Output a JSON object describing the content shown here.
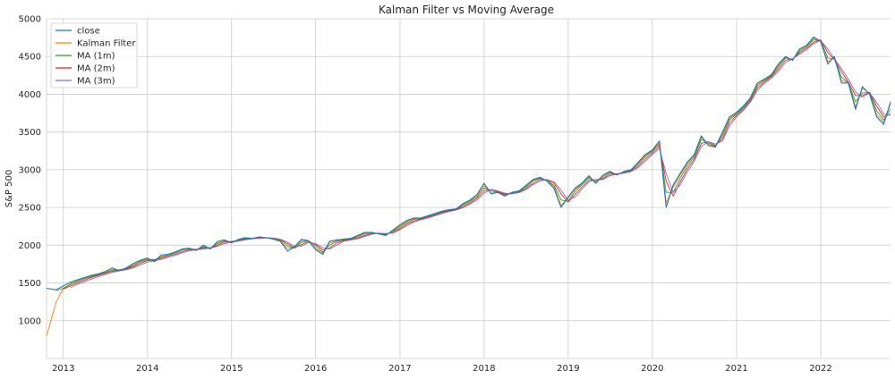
{
  "chart_data": {
    "type": "line",
    "title": "Kalman Filter vs Moving Average",
    "xlabel": "",
    "ylabel": "S&P 500",
    "xlim": [
      "2012-10-20",
      "2022-10-31"
    ],
    "ylim": [
      500,
      5000
    ],
    "x_tick_labels": [
      "2013",
      "2014",
      "2015",
      "2016",
      "2017",
      "2018",
      "2019",
      "2020",
      "2021",
      "2022"
    ],
    "y_tick_labels": [
      "1000",
      "1500",
      "2000",
      "2500",
      "3000",
      "3500",
      "4000",
      "4500",
      "5000"
    ],
    "y_ticks": [
      1000,
      1500,
      2000,
      2500,
      3000,
      3500,
      4000,
      4500,
      5000
    ],
    "grid": true,
    "legend_position": "upper-left",
    "x": [
      "2012-10-20",
      "2012-12-01",
      "2013-01-01",
      "2013-02-01",
      "2013-03-01",
      "2013-04-01",
      "2013-05-01",
      "2013-06-01",
      "2013-07-01",
      "2013-08-01",
      "2013-09-01",
      "2013-10-01",
      "2013-11-01",
      "2013-12-01",
      "2014-01-01",
      "2014-02-01",
      "2014-03-01",
      "2014-04-01",
      "2014-05-01",
      "2014-06-01",
      "2014-07-01",
      "2014-08-01",
      "2014-09-01",
      "2014-10-01",
      "2014-11-01",
      "2014-12-01",
      "2015-01-01",
      "2015-02-01",
      "2015-03-01",
      "2015-04-01",
      "2015-05-01",
      "2015-06-01",
      "2015-07-01",
      "2015-08-01",
      "2015-09-01",
      "2015-10-01",
      "2015-11-01",
      "2015-12-01",
      "2016-01-01",
      "2016-02-01",
      "2016-03-01",
      "2016-04-01",
      "2016-05-01",
      "2016-06-01",
      "2016-07-01",
      "2016-08-01",
      "2016-09-01",
      "2016-10-01",
      "2016-11-01",
      "2016-12-01",
      "2017-01-01",
      "2017-02-01",
      "2017-03-01",
      "2017-04-01",
      "2017-05-01",
      "2017-06-01",
      "2017-07-01",
      "2017-08-01",
      "2017-09-01",
      "2017-10-01",
      "2017-11-01",
      "2017-12-01",
      "2018-01-01",
      "2018-02-01",
      "2018-03-01",
      "2018-04-01",
      "2018-05-01",
      "2018-06-01",
      "2018-07-01",
      "2018-08-01",
      "2018-09-01",
      "2018-10-01",
      "2018-11-01",
      "2018-12-01",
      "2019-01-01",
      "2019-02-01",
      "2019-03-01",
      "2019-04-01",
      "2019-05-01",
      "2019-06-01",
      "2019-07-01",
      "2019-08-01",
      "2019-09-01",
      "2019-10-01",
      "2019-11-01",
      "2019-12-01",
      "2020-01-01",
      "2020-02-01",
      "2020-03-01",
      "2020-04-01",
      "2020-05-01",
      "2020-06-01",
      "2020-07-01",
      "2020-08-01",
      "2020-09-01",
      "2020-10-01",
      "2020-11-01",
      "2020-12-01",
      "2021-01-01",
      "2021-02-01",
      "2021-03-01",
      "2021-04-01",
      "2021-05-01",
      "2021-06-01",
      "2021-07-01",
      "2021-08-01",
      "2021-09-01",
      "2021-10-01",
      "2021-11-01",
      "2021-12-01",
      "2022-01-01",
      "2022-02-01",
      "2022-03-01",
      "2022-04-01",
      "2022-05-01",
      "2022-06-01",
      "2022-07-01",
      "2022-08-01",
      "2022-09-01",
      "2022-10-01",
      "2022-10-31"
    ],
    "series": [
      {
        "name": "close",
        "color": "#1f77b4",
        "values": [
          1430,
          1410,
          1460,
          1510,
          1540,
          1570,
          1600,
          1620,
          1650,
          1700,
          1660,
          1700,
          1760,
          1800,
          1830,
          1780,
          1870,
          1880,
          1910,
          1950,
          1960,
          1930,
          2000,
          1950,
          2050,
          2070,
          2030,
          2080,
          2100,
          2090,
          2110,
          2100,
          2080,
          2050,
          1920,
          1980,
          2080,
          2060,
          1940,
          1880,
          2050,
          2070,
          2080,
          2090,
          2130,
          2170,
          2170,
          2150,
          2130,
          2200,
          2270,
          2330,
          2360,
          2360,
          2390,
          2420,
          2450,
          2470,
          2480,
          2550,
          2600,
          2670,
          2820,
          2680,
          2700,
          2650,
          2700,
          2720,
          2790,
          2870,
          2900,
          2850,
          2750,
          2500,
          2640,
          2760,
          2820,
          2920,
          2820,
          2930,
          2980,
          2930,
          2980,
          3000,
          3100,
          3200,
          3260,
          3380,
          2500,
          2800,
          2950,
          3100,
          3200,
          3450,
          3320,
          3300,
          3500,
          3700,
          3760,
          3850,
          3950,
          4150,
          4200,
          4260,
          4400,
          4500,
          4450,
          4600,
          4650,
          4760,
          4700,
          4400,
          4500,
          4150,
          4150,
          3800,
          4100,
          4000,
          3700,
          3600,
          3900
        ]
      },
      {
        "name": "Kalman Filter",
        "color": "#ff7f0e",
        "values": [
          800,
          1250,
          1430,
          1490,
          1525,
          1560,
          1590,
          1615,
          1640,
          1680,
          1670,
          1700,
          1740,
          1790,
          1815,
          1800,
          1850,
          1875,
          1900,
          1940,
          1955,
          1940,
          1985,
          1960,
          2030,
          2060,
          2040,
          2070,
          2095,
          2090,
          2105,
          2100,
          2085,
          2055,
          1955,
          1975,
          2060,
          2060,
          1960,
          1900,
          2030,
          2060,
          2075,
          2085,
          2120,
          2160,
          2165,
          2150,
          2135,
          2190,
          2255,
          2315,
          2350,
          2360,
          2385,
          2415,
          2445,
          2465,
          2480,
          2540,
          2590,
          2660,
          2790,
          2690,
          2700,
          2660,
          2695,
          2715,
          2780,
          2860,
          2890,
          2855,
          2770,
          2530,
          2620,
          2745,
          2810,
          2905,
          2830,
          2920,
          2970,
          2935,
          2975,
          3000,
          3090,
          3185,
          3250,
          3360,
          2560,
          2770,
          2930,
          3080,
          3190,
          3430,
          3330,
          3305,
          3480,
          3680,
          3750,
          3840,
          3940,
          4130,
          4190,
          4250,
          4380,
          4490,
          4455,
          4590,
          4640,
          4740,
          4700,
          4430,
          4490,
          4180,
          4160,
          3830,
          4080,
          4010,
          3730,
          3630,
          3870
        ]
      },
      {
        "name": "MA (1m)",
        "color": "#2ca02c",
        "values": [
          null,
          1400,
          1430,
          1480,
          1520,
          1555,
          1585,
          1610,
          1635,
          1670,
          1675,
          1690,
          1730,
          1780,
          1810,
          1810,
          1840,
          1870,
          1895,
          1935,
          1950,
          1945,
          1975,
          1965,
          2020,
          2055,
          2045,
          2065,
          2090,
          2090,
          2100,
          2100,
          2090,
          2065,
          1990,
          1960,
          2040,
          2060,
          1990,
          1910,
          2000,
          2050,
          2070,
          2080,
          2110,
          2150,
          2165,
          2155,
          2140,
          2180,
          2240,
          2300,
          2340,
          2355,
          2380,
          2410,
          2440,
          2460,
          2475,
          2530,
          2580,
          2640,
          2760,
          2720,
          2700,
          2670,
          2690,
          2710,
          2770,
          2850,
          2885,
          2860,
          2790,
          2600,
          2580,
          2720,
          2800,
          2890,
          2850,
          2900,
          2960,
          2940,
          2970,
          2995,
          3075,
          3170,
          3240,
          3340,
          2700,
          2700,
          2890,
          3050,
          3170,
          3400,
          3350,
          3310,
          3450,
          3660,
          3740,
          3830,
          3930,
          4110,
          4180,
          4240,
          4360,
          4480,
          4460,
          4570,
          4630,
          4720,
          4710,
          4480,
          4470,
          4230,
          4150,
          3900,
          4020,
          4020,
          3780,
          3660,
          3800
        ]
      },
      {
        "name": "MA (2m)",
        "color": "#d62728",
        "values": [
          null,
          null,
          1420,
          1460,
          1500,
          1535,
          1570,
          1600,
          1625,
          1655,
          1670,
          1685,
          1715,
          1760,
          1795,
          1805,
          1825,
          1855,
          1880,
          1915,
          1940,
          1945,
          1960,
          1965,
          2000,
          2040,
          2050,
          2060,
          2080,
          2090,
          2095,
          2100,
          2095,
          2075,
          2020,
          1965,
          2010,
          2050,
          2010,
          1940,
          1960,
          2030,
          2060,
          2075,
          2095,
          2130,
          2155,
          2160,
          2150,
          2165,
          2220,
          2280,
          2320,
          2345,
          2370,
          2400,
          2430,
          2455,
          2470,
          2510,
          2560,
          2620,
          2720,
          2740,
          2710,
          2680,
          2680,
          2700,
          2750,
          2820,
          2870,
          2870,
          2820,
          2680,
          2570,
          2680,
          2770,
          2860,
          2870,
          2880,
          2940,
          2945,
          2960,
          2985,
          3050,
          3140,
          3220,
          3310,
          2850,
          2650,
          2840,
          3010,
          3140,
          3350,
          3370,
          3320,
          3410,
          3620,
          3720,
          3810,
          3910,
          4080,
          4160,
          4230,
          4330,
          4450,
          4470,
          4550,
          4610,
          4690,
          4720,
          4550,
          4460,
          4300,
          4160,
          3980,
          3980,
          4030,
          3840,
          3700,
          3740
        ]
      },
      {
        "name": "MA (3m)",
        "color": "#9467bd",
        "values": [
          null,
          null,
          null,
          1440,
          1480,
          1515,
          1550,
          1585,
          1610,
          1640,
          1660,
          1675,
          1700,
          1740,
          1775,
          1795,
          1810,
          1840,
          1865,
          1900,
          1925,
          1940,
          1950,
          1960,
          1985,
          2020,
          2040,
          2055,
          2070,
          2085,
          2090,
          2095,
          2095,
          2080,
          2040,
          1985,
          1990,
          2035,
          2020,
          1970,
          1950,
          2000,
          2050,
          2070,
          2085,
          2115,
          2145,
          2160,
          2155,
          2160,
          2205,
          2260,
          2305,
          2335,
          2360,
          2390,
          2420,
          2445,
          2465,
          2495,
          2545,
          2600,
          2690,
          2740,
          2720,
          2690,
          2680,
          2695,
          2735,
          2800,
          2850,
          2870,
          2840,
          2730,
          2600,
          2640,
          2740,
          2840,
          2870,
          2870,
          2920,
          2940,
          2955,
          2975,
          3030,
          3110,
          3200,
          3280,
          2950,
          2700,
          2800,
          2970,
          3110,
          3310,
          3370,
          3340,
          3380,
          3580,
          3700,
          3790,
          3890,
          4050,
          4140,
          4210,
          4300,
          4420,
          4470,
          4530,
          4590,
          4670,
          4710,
          4600,
          4470,
          4340,
          4200,
          4030,
          3960,
          4020,
          3890,
          3740,
          3720
        ]
      }
    ]
  }
}
